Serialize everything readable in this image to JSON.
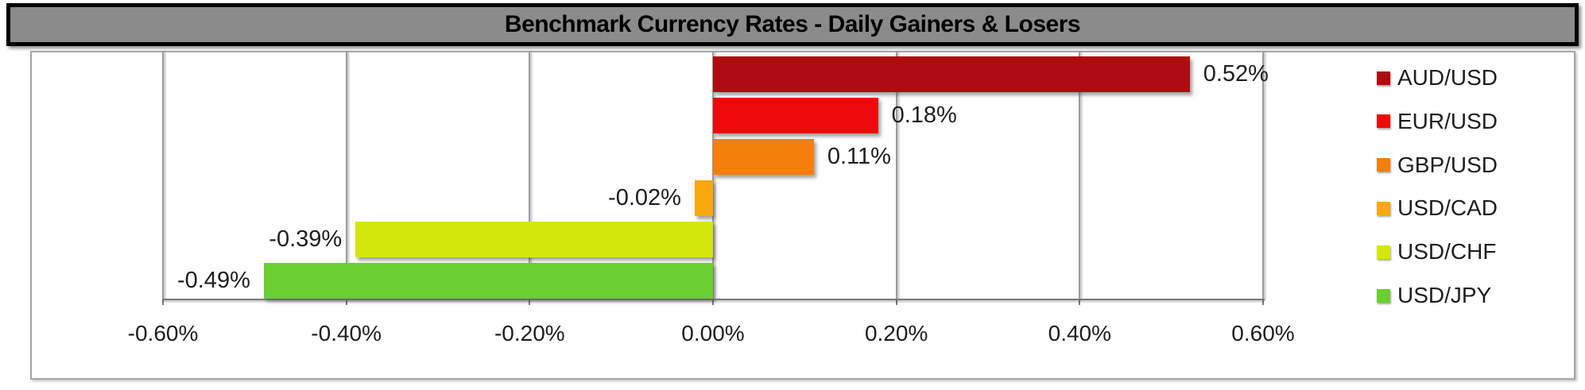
{
  "header": {
    "title": "Benchmark Currency Rates - Daily Gainers & Losers"
  },
  "chart_data": {
    "type": "bar",
    "orientation": "horizontal",
    "title": "Benchmark Currency Rates - Daily Gainers & Losers",
    "categories": [
      "AUD/USD",
      "EUR/USD",
      "GBP/USD",
      "USD/CAD",
      "USD/CHF",
      "USD/JPY"
    ],
    "values": [
      0.52,
      0.18,
      0.11,
      -0.02,
      -0.39,
      -0.49
    ],
    "data_labels": [
      "0.52%",
      "0.18%",
      "0.11%",
      "-0.02%",
      "-0.39%",
      "-0.49%"
    ],
    "bar_colors": [
      "#ae0c10",
      "#ee0a0c",
      "#f67e0b",
      "#fba80f",
      "#d4e70d",
      "#6bce31"
    ],
    "xlim": [
      -0.6,
      0.6
    ],
    "x_ticks": [
      -0.6,
      -0.4,
      -0.2,
      0.0,
      0.2,
      0.4,
      0.6
    ],
    "x_tick_labels": [
      "-0.60%",
      "-0.40%",
      "-0.20%",
      "0.00%",
      "0.20%",
      "0.40%",
      "0.60%"
    ],
    "grid": true,
    "legend_position": "right",
    "legend": [
      {
        "label": "AUD/USD",
        "color": "#ae0c10"
      },
      {
        "label": "EUR/USD",
        "color": "#ee0a0c"
      },
      {
        "label": "GBP/USD",
        "color": "#f67e0b"
      },
      {
        "label": "USD/CAD",
        "color": "#fba80f"
      },
      {
        "label": "USD/CHF",
        "color": "#d4e70d"
      },
      {
        "label": "USD/JPY",
        "color": "#6bce31"
      }
    ]
  },
  "colors": {
    "title_bg": "#8b8b8b",
    "title_text": "#000000",
    "chart_border": "#a6a6a6",
    "gridline": "#9b9b9b",
    "axis_line": "#7a7a7a",
    "label_text": "#1e1e1e"
  }
}
